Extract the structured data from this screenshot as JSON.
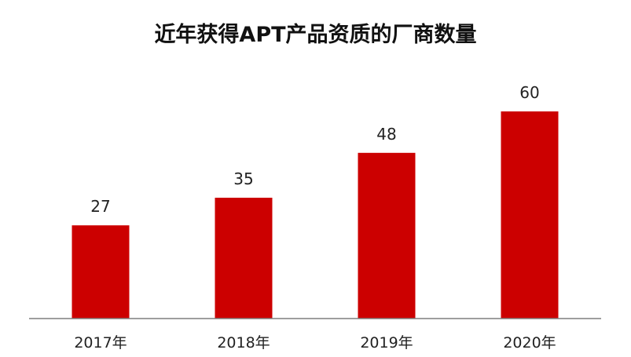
{
  "chart_data": {
    "type": "bar",
    "title": "近年获得APT产品资质的厂商数量",
    "categories": [
      "2017年",
      "2018年",
      "2019年",
      "2020年"
    ],
    "values": [
      27,
      35,
      48,
      60
    ],
    "data_labels": [
      "27",
      "35",
      "48",
      "60"
    ],
    "xlabel": "",
    "ylabel": "",
    "ylim": [
      0,
      60
    ],
    "grid": false,
    "legend": "none",
    "bar_color": "#cc0000",
    "axis_color": "#7f7f7f"
  }
}
